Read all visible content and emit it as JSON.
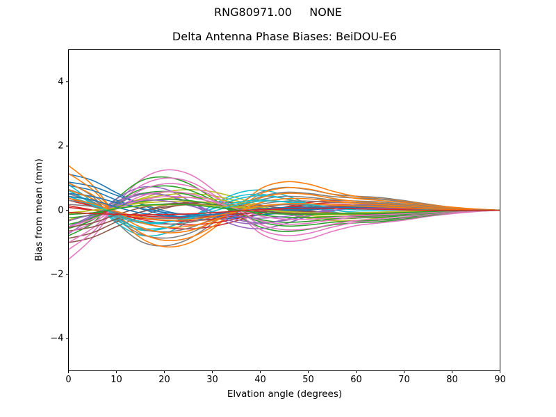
{
  "chart_data": {
    "type": "line",
    "suptitle": "RNG80971.00     NONE",
    "title": "Delta Antenna Phase Biases: BeiDOU-E6",
    "xlabel": "Elvation angle (degrees)",
    "ylabel": "Bias from mean (mm)",
    "xlim": [
      0,
      90
    ],
    "ylim": [
      -5,
      5
    ],
    "xticks": [
      0,
      10,
      20,
      30,
      40,
      50,
      60,
      70,
      80,
      90
    ],
    "yticks": [
      -4,
      -2,
      0,
      2,
      4
    ],
    "grid": false,
    "legend": null,
    "background": "#ffffff",
    "n_series": 48,
    "x": [
      0,
      5,
      10,
      15,
      20,
      25,
      30,
      35,
      40,
      45,
      50,
      55,
      60,
      65,
      70,
      75,
      80,
      85,
      90
    ],
    "base_shapes": {
      "S1": [
        -1.42,
        -0.8,
        0.15,
        0.88,
        1.15,
        1.02,
        0.55,
        -0.1,
        -0.75,
        -0.95,
        -0.85,
        -0.6,
        -0.42,
        -0.35,
        -0.28,
        -0.18,
        -0.1,
        -0.04,
        0.0
      ],
      "S2": [
        0.92,
        0.45,
        -0.42,
        -1.05,
        -1.18,
        -0.92,
        -0.38,
        0.22,
        0.62,
        0.75,
        0.65,
        0.48,
        0.4,
        0.36,
        0.28,
        0.18,
        0.09,
        0.03,
        0.0
      ],
      "S3": [
        -0.62,
        -0.33,
        0.02,
        0.32,
        0.55,
        0.65,
        0.6,
        0.42,
        0.18,
        -0.06,
        -0.24,
        -0.33,
        -0.32,
        -0.25,
        -0.16,
        -0.08,
        -0.03,
        -0.01,
        0.0
      ],
      "S4": [
        0.52,
        0.1,
        -0.36,
        -0.6,
        -0.5,
        -0.14,
        0.26,
        0.5,
        0.48,
        0.28,
        0.04,
        -0.16,
        -0.26,
        -0.24,
        -0.15,
        -0.07,
        -0.02,
        0.0,
        0.0
      ],
      "S5": [
        0.96,
        0.85,
        0.62,
        0.38,
        0.12,
        -0.08,
        -0.22,
        -0.28,
        -0.26,
        -0.18,
        -0.08,
        0.02,
        0.09,
        0.11,
        0.1,
        0.07,
        0.04,
        0.01,
        0.0
      ]
    },
    "palette": [
      "#1f77b4",
      "#ff7f0e",
      "#2ca02c",
      "#d62728",
      "#9467bd",
      "#8c564b",
      "#e377c2",
      "#7f7f7f",
      "#bcbd22",
      "#17becf"
    ],
    "series": [
      {
        "color": "#e377c2",
        "a": "S1",
        "sa": 1.0,
        "b": "S3",
        "sb": 0.18
      },
      {
        "color": "#7f7f7f",
        "a": "S2",
        "sa": 1.0,
        "b": "S4",
        "sb": -0.14
      },
      {
        "color": "#bcbd22",
        "a": "S3",
        "sa": 1.0,
        "b": "S5",
        "sb": 0.1
      },
      {
        "color": "#17becf",
        "a": "S4",
        "sa": 1.0,
        "b": "S1",
        "sb": -0.2
      },
      {
        "color": "#1f77b4",
        "a": "S5",
        "sa": 1.0,
        "b": "S2",
        "sb": 0.18
      },
      {
        "color": "#ff7f0e",
        "a": "S1",
        "sa": -0.92,
        "b": "S3",
        "sb": -0.14
      },
      {
        "color": "#2ca02c",
        "a": "S2",
        "sa": -0.92,
        "b": "S4",
        "sb": 0.1
      },
      {
        "color": "#d62728",
        "a": "S3",
        "sa": -0.92,
        "b": "S5",
        "sb": -0.2
      },
      {
        "color": "#9467bd",
        "a": "S4",
        "sa": -0.92,
        "b": "S1",
        "sb": 0.18
      },
      {
        "color": "#8c564b",
        "a": "S5",
        "sa": -0.92,
        "b": "S2",
        "sb": -0.14
      },
      {
        "color": "#e377c2",
        "a": "S1",
        "sa": 0.82,
        "b": "S3",
        "sb": 0.1
      },
      {
        "color": "#7f7f7f",
        "a": "S2",
        "sa": 0.82,
        "b": "S4",
        "sb": -0.2
      },
      {
        "color": "#bcbd22",
        "a": "S3",
        "sa": 0.82,
        "b": "S5",
        "sb": 0.18
      },
      {
        "color": "#17becf",
        "a": "S4",
        "sa": 0.82,
        "b": "S1",
        "sb": -0.14
      },
      {
        "color": "#1f77b4",
        "a": "S5",
        "sa": 0.82,
        "b": "S2",
        "sb": 0.1
      },
      {
        "color": "#ff7f0e",
        "a": "S1",
        "sa": -0.72,
        "b": "S3",
        "sb": -0.2
      },
      {
        "color": "#2ca02c",
        "a": "S2",
        "sa": -0.72,
        "b": "S4",
        "sb": 0.18
      },
      {
        "color": "#d62728",
        "a": "S3",
        "sa": -0.72,
        "b": "S5",
        "sb": -0.14
      },
      {
        "color": "#9467bd",
        "a": "S4",
        "sa": -0.72,
        "b": "S1",
        "sb": 0.1
      },
      {
        "color": "#8c564b",
        "a": "S5",
        "sa": -0.72,
        "b": "S2",
        "sb": -0.2
      },
      {
        "color": "#e377c2",
        "a": "S1",
        "sa": 0.63,
        "b": "S3",
        "sb": 0.18
      },
      {
        "color": "#7f7f7f",
        "a": "S2",
        "sa": 0.63,
        "b": "S4",
        "sb": -0.14
      },
      {
        "color": "#bcbd22",
        "a": "S3",
        "sa": 0.63,
        "b": "S5",
        "sb": 0.1
      },
      {
        "color": "#17becf",
        "a": "S4",
        "sa": 0.63,
        "b": "S1",
        "sb": -0.2
      },
      {
        "color": "#1f77b4",
        "a": "S5",
        "sa": 0.63,
        "b": "S2",
        "sb": 0.18
      },
      {
        "color": "#ff7f0e",
        "a": "S1",
        "sa": -0.54,
        "b": "S3",
        "sb": -0.14
      },
      {
        "color": "#2ca02c",
        "a": "S2",
        "sa": -0.54,
        "b": "S4",
        "sb": 0.1
      },
      {
        "color": "#d62728",
        "a": "S3",
        "sa": -0.54,
        "b": "S5",
        "sb": -0.2
      },
      {
        "color": "#9467bd",
        "a": "S4",
        "sa": -0.54,
        "b": "S1",
        "sb": 0.18
      },
      {
        "color": "#8c564b",
        "a": "S5",
        "sa": -0.54,
        "b": "S2",
        "sb": -0.14
      },
      {
        "color": "#e377c2",
        "a": "S1",
        "sa": 0.45,
        "b": "S3",
        "sb": 0.1
      },
      {
        "color": "#7f7f7f",
        "a": "S2",
        "sa": 0.45,
        "b": "S4",
        "sb": -0.2
      },
      {
        "color": "#bcbd22",
        "a": "S3",
        "sa": 0.45,
        "b": "S5",
        "sb": 0.18
      },
      {
        "color": "#17becf",
        "a": "S4",
        "sa": 0.45,
        "b": "S1",
        "sb": -0.14
      },
      {
        "color": "#1f77b4",
        "a": "S5",
        "sa": 0.45,
        "b": "S2",
        "sb": 0.1
      },
      {
        "color": "#ff7f0e",
        "a": "S1",
        "sa": -0.36,
        "b": "S3",
        "sb": -0.2
      },
      {
        "color": "#2ca02c",
        "a": "S2",
        "sa": -0.36,
        "b": "S4",
        "sb": 0.18
      },
      {
        "color": "#d62728",
        "a": "S3",
        "sa": -0.36,
        "b": "S5",
        "sb": -0.14
      },
      {
        "color": "#9467bd",
        "a": "S4",
        "sa": -0.36,
        "b": "S1",
        "sb": 0.1
      },
      {
        "color": "#8c564b",
        "a": "S5",
        "sa": -0.36,
        "b": "S2",
        "sb": -0.2
      },
      {
        "color": "#e377c2",
        "a": "S1",
        "sa": 0.28,
        "b": "S3",
        "sb": 0.18
      },
      {
        "color": "#7f7f7f",
        "a": "S2",
        "sa": 0.28,
        "b": "S4",
        "sb": -0.14
      },
      {
        "color": "#bcbd22",
        "a": "S3",
        "sa": 0.28,
        "b": "S5",
        "sb": 0.1
      },
      {
        "color": "#17becf",
        "a": "S4",
        "sa": 0.28,
        "b": "S1",
        "sb": -0.2
      },
      {
        "color": "#1f77b4",
        "a": "S5",
        "sa": 0.28,
        "b": "S2",
        "sb": 0.18
      },
      {
        "color": "#ff7f0e",
        "a": "S1",
        "sa": -0.2,
        "b": "S3",
        "sb": -0.14
      },
      {
        "color": "#2ca02c",
        "a": "S2",
        "sa": -0.2,
        "b": "S4",
        "sb": 0.1
      },
      {
        "color": "#d62728",
        "a": "S3",
        "sa": -0.2,
        "b": "S5",
        "sb": -0.2
      }
    ]
  }
}
